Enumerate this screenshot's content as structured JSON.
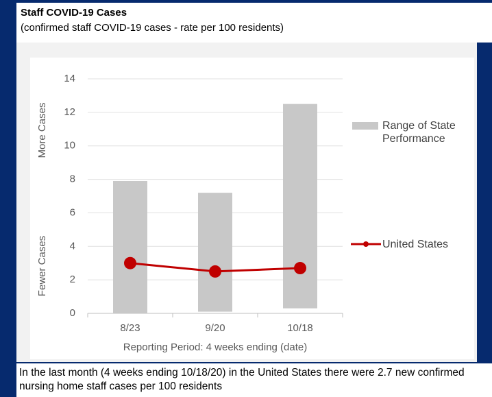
{
  "chart_data": {
    "type": "combo",
    "title": "Staff COVID-19 Cases",
    "subtitle": "(confirmed staff COVID-19 cases - rate per 100 residents)",
    "categories": [
      "8/23",
      "9/20",
      "10/18"
    ],
    "series": [
      {
        "name": "Range of State Performance",
        "color": "#c8c8c8",
        "low": [
          0,
          0.1,
          0.3
        ],
        "high": [
          7.9,
          7.2,
          12.5
        ]
      },
      {
        "name": "United States",
        "color": "#c00000",
        "values": [
          3.0,
          2.5,
          2.7
        ]
      }
    ],
    "ylim": [
      0,
      14
    ],
    "yticks": [
      0,
      2,
      4,
      6,
      8,
      10,
      12,
      14
    ],
    "grid": true,
    "y_label_top": "More Cases",
    "y_label_bottom": "Fewer Cases",
    "x_label": "Reporting Period: 4 weeks ending (date)",
    "caption": "In the last month (4 weeks ending 10/18/20) in the United States there were 2.7 new confirmed nursing home staff cases per 100 residents"
  }
}
